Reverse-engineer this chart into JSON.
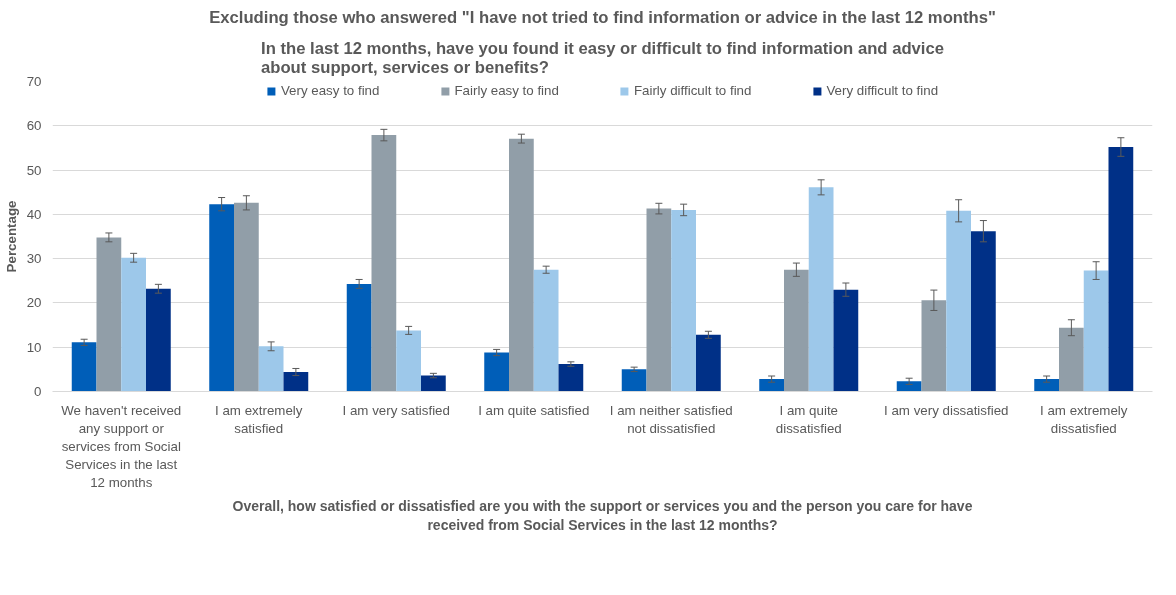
{
  "chart_data": {
    "type": "bar",
    "title": "Excluding those who answered \"I have not tried to find information or advice in the last 12 months\"",
    "subtitle": "In the last 12 months, have you found it easy or difficult to find information and advice about support, services or benefits?",
    "xlabel": "Overall, how satisfied or dissatisfied are you with the support or services you and the person you care for have received from Social Services in the last 12 months?",
    "ylabel": "Percentage",
    "categories": [
      "We haven't received any support or services from Social Services in the last 12 months",
      "I am extremely satisfied",
      "I am very satisfied",
      "I am quite satisfied",
      "I am neither satisfied not dissatisfied",
      "I am quite dissatisfied",
      "I am very dissatisfied",
      "I am extremely dissatisfied"
    ],
    "series": [
      {
        "name": "Very easy to find",
        "color": "#005eb8",
        "values": [
          11.1,
          42.3,
          24.3,
          8.8,
          5.0,
          2.8,
          2.3,
          2.8
        ],
        "errors": [
          0.7,
          1.5,
          1.0,
          0.7,
          0.5,
          0.7,
          0.7,
          0.7
        ]
      },
      {
        "name": "Fairly easy to find",
        "color": "#919ea8",
        "values": [
          34.8,
          42.6,
          57.9,
          57.1,
          41.3,
          27.5,
          20.6,
          14.4
        ],
        "errors": [
          1.0,
          1.6,
          1.3,
          1.0,
          1.2,
          1.5,
          2.3,
          1.8
        ]
      },
      {
        "name": "Fairly difficult to find",
        "color": "#9dc8ea",
        "values": [
          30.2,
          10.2,
          13.8,
          27.5,
          41.0,
          46.1,
          40.8,
          27.3
        ],
        "errors": [
          1.0,
          1.0,
          0.9,
          0.8,
          1.3,
          1.7,
          2.5,
          2.0
        ]
      },
      {
        "name": "Very difficult to find",
        "color": "#003087",
        "values": [
          23.2,
          4.4,
          3.6,
          6.2,
          12.8,
          23.0,
          36.2,
          55.2
        ],
        "errors": [
          1.0,
          0.8,
          0.5,
          0.5,
          0.8,
          1.5,
          2.4,
          2.1
        ]
      }
    ],
    "ylim": [
      0,
      70
    ],
    "yticks": [
      0,
      10,
      20,
      30,
      40,
      50,
      60,
      70
    ],
    "grid": "y",
    "legend": "top"
  }
}
